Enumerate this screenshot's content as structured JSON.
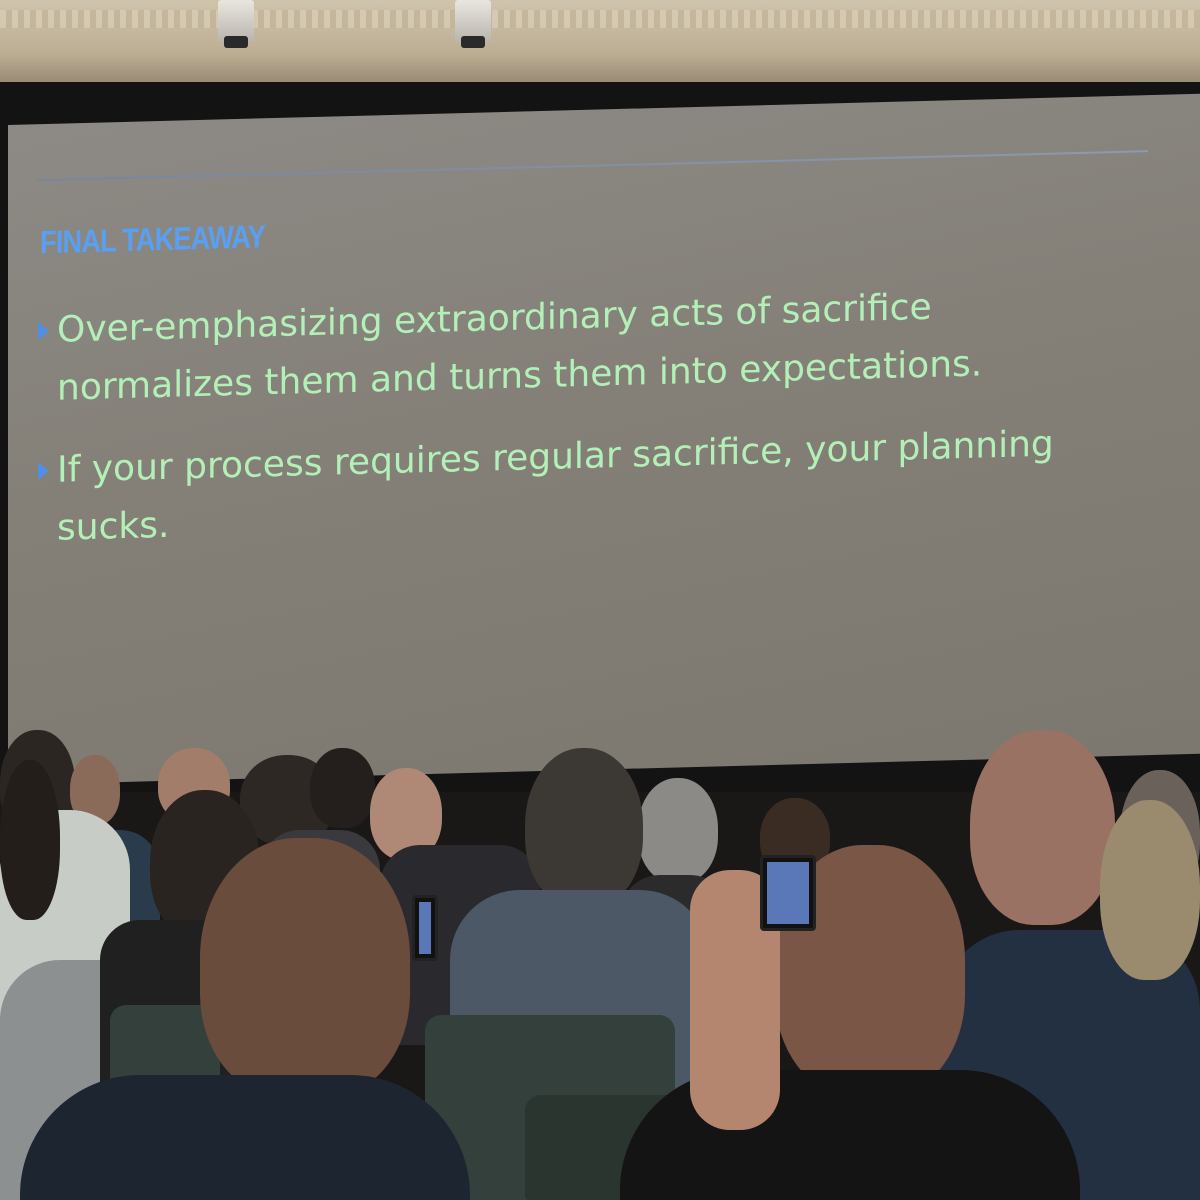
{
  "slide": {
    "title": "FINAL TAKEAWAY",
    "bullets": [
      {
        "line1": "Over-emphasizing extraordinary acts of sacrifice",
        "line2": "normalizes them and turns them into expectations."
      },
      {
        "line1": "If your process requires regular sacrifice, your planning",
        "line2": "sucks."
      }
    ]
  },
  "colors": {
    "title": "#5aa0f2",
    "bullet_text": "#b3f0b8",
    "bullet_marker": "#4f8fe6",
    "slide_background": "#85817a"
  }
}
